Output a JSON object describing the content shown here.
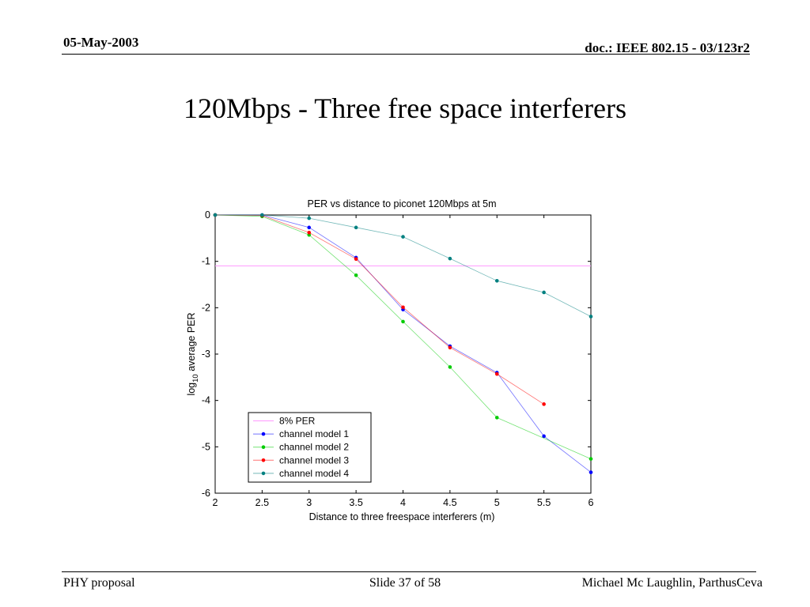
{
  "slide": {
    "date": "05-May-2003",
    "doc_id": "doc.: IEEE 802.15 -  03/123r2",
    "title": "120Mbps - Three free space interferers",
    "footer_left": "PHY proposal",
    "footer_center": "Slide 37 of 58",
    "footer_right": "Michael Mc Laughlin, ParthusCeva"
  },
  "chart_data": {
    "type": "line",
    "title": "PER vs distance to piconet 120Mbps at 5m",
    "xlabel": "Distance to three freespace interferers (m)",
    "ylabel_prefix": "log",
    "ylabel_sub": "10",
    "ylabel_suffix": " average PER",
    "xlim": [
      2,
      6
    ],
    "ylim": [
      -6,
      0
    ],
    "xticks": [
      2,
      2.5,
      3,
      3.5,
      4,
      4.5,
      5,
      5.5,
      6
    ],
    "xtick_labels": [
      "2",
      "2.5",
      "3",
      "3.5",
      "4",
      "4.5",
      "5",
      "5.5",
      "6"
    ],
    "yticks": [
      0,
      -1,
      -2,
      -3,
      -4,
      -5,
      -6
    ],
    "ytick_labels": [
      "0",
      "-1",
      "-2",
      "-3",
      "-4",
      "-5",
      "-6"
    ],
    "reference_line": {
      "name": "8% PER",
      "y": -1.097,
      "color": "#ff99ff"
    },
    "series": [
      {
        "name": "channel model 1",
        "color": "#0000ff",
        "x": [
          2,
          2.5,
          3,
          3.5,
          4,
          4.5,
          5,
          5.5,
          6
        ],
        "y": [
          0,
          0,
          -0.27,
          -0.92,
          -2.04,
          -2.83,
          -3.4,
          -4.77,
          -5.55
        ]
      },
      {
        "name": "channel model 2",
        "color": "#00cc00",
        "x": [
          2,
          2.5,
          3,
          3.5,
          4,
          4.5,
          5,
          6
        ],
        "y": [
          0,
          -0.03,
          -0.43,
          -1.3,
          -2.3,
          -3.28,
          -4.37,
          -5.26
        ]
      },
      {
        "name": "channel model 3",
        "color": "#ff0000",
        "x": [
          2,
          2.5,
          3,
          3.5,
          4,
          4.5,
          5,
          5.5
        ],
        "y": [
          0,
          -0.01,
          -0.38,
          -0.95,
          -1.99,
          -2.86,
          -3.43,
          -4.08
        ]
      },
      {
        "name": "channel model 4",
        "color": "#008080",
        "x": [
          2,
          2.5,
          3,
          3.5,
          4,
          4.5,
          5,
          5.5,
          6
        ],
        "y": [
          0,
          0,
          -0.07,
          -0.27,
          -0.47,
          -0.94,
          -1.42,
          -1.67,
          -2.19
        ]
      }
    ],
    "legend_position": "lower-left",
    "grid": false
  }
}
